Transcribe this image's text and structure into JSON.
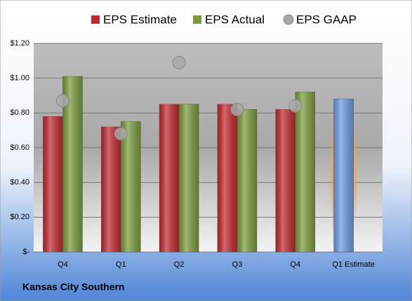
{
  "chart_data": {
    "type": "bar",
    "categories": [
      "Q4",
      "Q1",
      "Q2",
      "Q3",
      "Q4",
      "Q1 Estimate"
    ],
    "series": [
      {
        "name": "EPS Estimate",
        "type": "bar",
        "color": "#c0282e",
        "colors": [
          "#c0282e",
          "#c0282e",
          "#c0282e",
          "#c0282e",
          "#c0282e",
          "#6a9be0"
        ],
        "values": [
          0.78,
          0.72,
          0.85,
          0.85,
          0.82,
          0.88
        ]
      },
      {
        "name": "EPS Actual",
        "type": "bar",
        "color": "#7a9a3a",
        "values": [
          1.01,
          0.75,
          0.85,
          0.82,
          0.92,
          null
        ]
      },
      {
        "name": "EPS GAAP",
        "type": "scatter",
        "color": "#a8a8a8",
        "values": [
          0.87,
          0.68,
          1.09,
          0.82,
          0.84,
          null
        ]
      }
    ],
    "ylim": [
      0,
      1.2
    ],
    "yticks": [
      {
        "value": 0,
        "label": "$-"
      },
      {
        "value": 0.2,
        "label": "$0.20"
      },
      {
        "value": 0.4,
        "label": "$0.40"
      },
      {
        "value": 0.6,
        "label": "$0.60"
      },
      {
        "value": 0.8,
        "label": "$0.80"
      },
      {
        "value": 1.0,
        "label": "$1.00"
      },
      {
        "value": 1.2,
        "label": "$1.20"
      }
    ],
    "grid": true,
    "legend": "top",
    "footer": "Kansas City Southern"
  }
}
